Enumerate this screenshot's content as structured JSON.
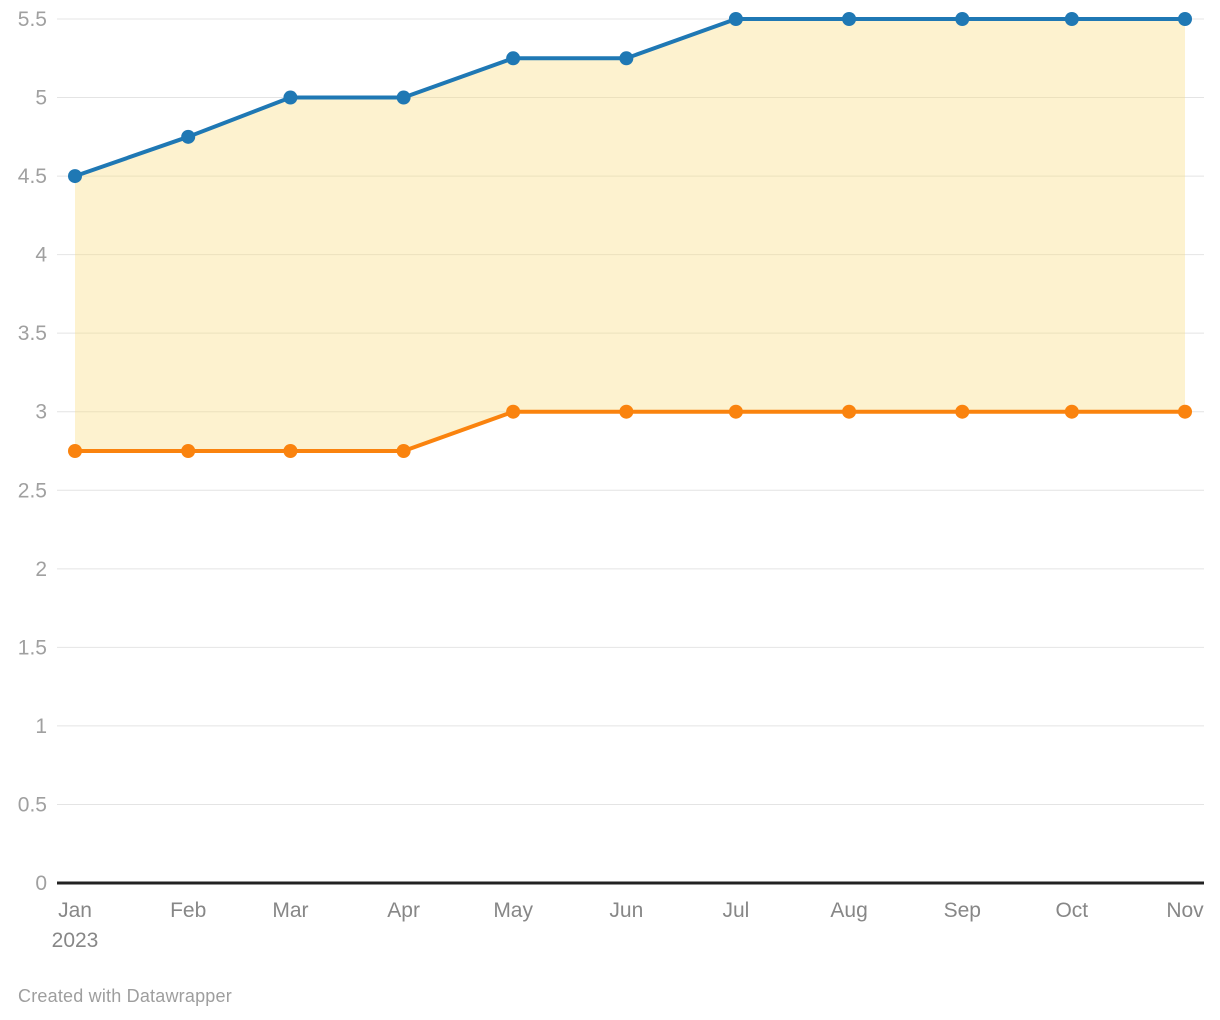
{
  "chart_data": {
    "type": "line",
    "title": "",
    "xlabel": "",
    "ylabel": "",
    "grid": "horizontal",
    "legend": "none",
    "ylim": [
      0,
      5.5
    ],
    "y_ticks": [
      "0",
      "0.5",
      "1",
      "1.5",
      "2",
      "2.5",
      "3",
      "3.5",
      "4",
      "4.5",
      "5",
      "5.5"
    ],
    "x_tick_labels": [
      {
        "label": "Jan",
        "sub": "2023"
      },
      {
        "label": "Feb"
      },
      {
        "label": "Mar"
      },
      {
        "label": "Apr"
      },
      {
        "label": "May"
      },
      {
        "label": "Jun"
      },
      {
        "label": "Jul"
      },
      {
        "label": "Aug"
      },
      {
        "label": "Sep"
      },
      {
        "label": "Oct"
      },
      {
        "label": "Nov"
      }
    ],
    "x_days": [
      0,
      31,
      59,
      90,
      120,
      151,
      181,
      212,
      243,
      273,
      304
    ],
    "series": [
      {
        "name": "blue-line-upper",
        "color": "#1f78b4",
        "values": [
          4.5,
          4.75,
          5,
          5,
          5.25,
          5.25,
          5.5,
          5.5,
          5.5,
          5.5,
          5.5
        ]
      },
      {
        "name": "orange-line-lower",
        "color": "#fa830e",
        "values": [
          2.75,
          2.75,
          2.75,
          2.75,
          3,
          3,
          3,
          3,
          3,
          3,
          3
        ]
      }
    ],
    "area_between_series": true,
    "colors": {
      "area_fill": "rgba(250, 222, 130, 0.38)",
      "gridline": "#e4e4e4",
      "baseline_axis": "#222222",
      "y_tick_text": "#a0a0a0",
      "x_tick_text": "#878787"
    },
    "marker_radius": 7,
    "line_width": 4
  },
  "footer": {
    "credit": "Created with Datawrapper"
  }
}
